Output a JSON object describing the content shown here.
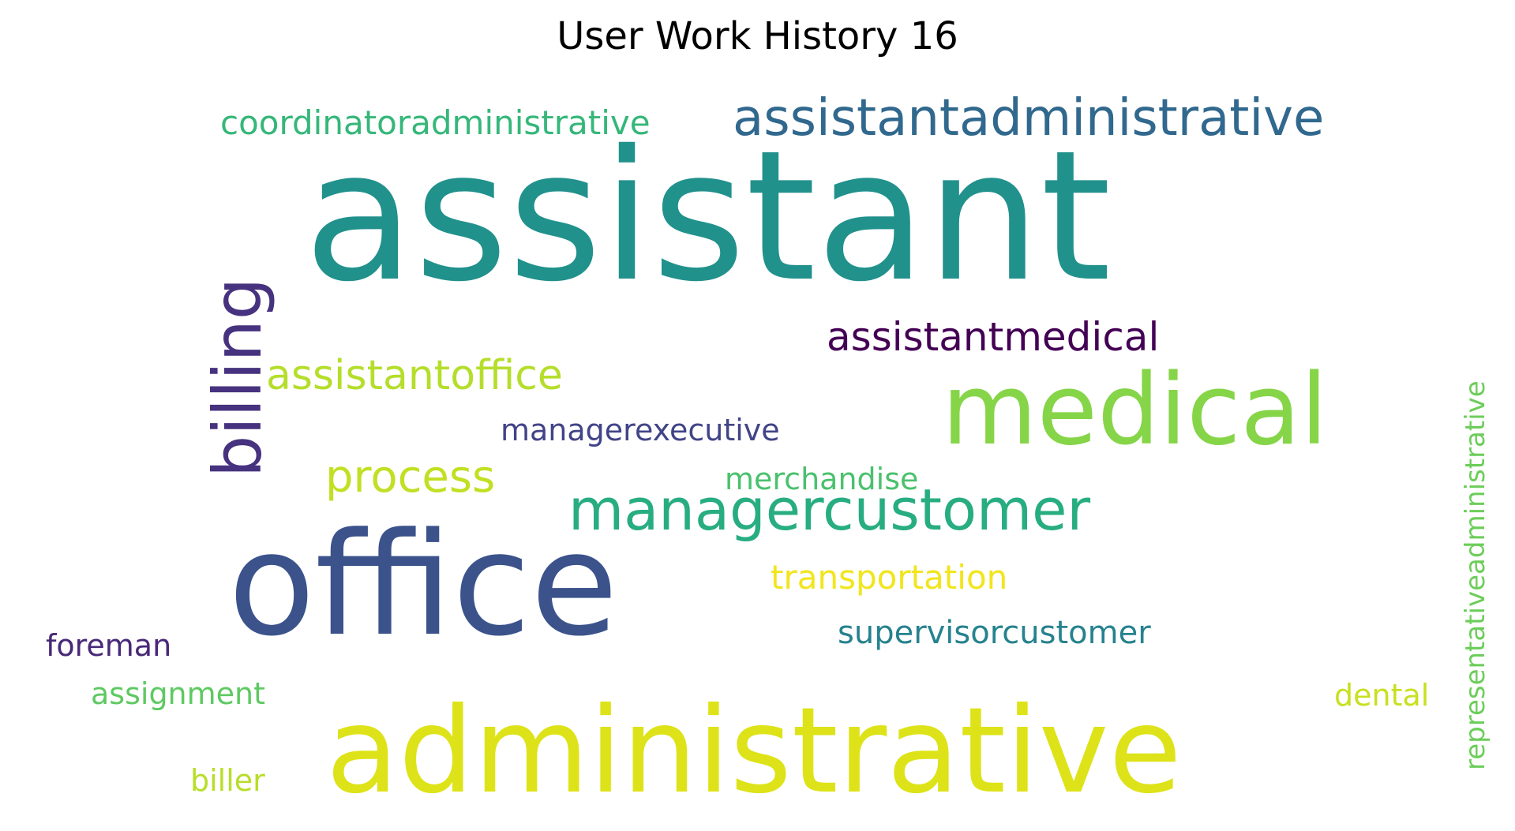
{
  "title": "User Work History 16",
  "words": [
    {
      "text": "assistant",
      "color": "#21918c",
      "vertical": false
    },
    {
      "text": "administrative",
      "color": "#dde318",
      "vertical": false
    },
    {
      "text": "office",
      "color": "#3b528b",
      "vertical": false
    },
    {
      "text": "medical",
      "color": "#86d549",
      "vertical": false
    },
    {
      "text": "billing",
      "color": "#46327e",
      "vertical": true
    },
    {
      "text": "assistantadministrative",
      "color": "#31688e",
      "vertical": false
    },
    {
      "text": "managercustomer",
      "color": "#27ad81",
      "vertical": false
    },
    {
      "text": "coordinatoradministrative",
      "color": "#35b779",
      "vertical": false
    },
    {
      "text": "assistantmedical",
      "color": "#440154",
      "vertical": false
    },
    {
      "text": "assistantoffice",
      "color": "#b5de2b",
      "vertical": false
    },
    {
      "text": "process",
      "color": "#c2df23",
      "vertical": false
    },
    {
      "text": "managerexecutive",
      "color": "#414487",
      "vertical": false
    },
    {
      "text": "merchandise",
      "color": "#4ac16d",
      "vertical": false
    },
    {
      "text": "transportation",
      "color": "#f1e51d",
      "vertical": false
    },
    {
      "text": "supervisorcustomer",
      "color": "#26828e",
      "vertical": false
    },
    {
      "text": "representativeadministrative",
      "color": "#6ccd5a",
      "vertical": true
    },
    {
      "text": "dental",
      "color": "#c8e020",
      "vertical": false
    },
    {
      "text": "foreman",
      "color": "#482878",
      "vertical": false
    },
    {
      "text": "assignment",
      "color": "#5ec962",
      "vertical": false
    },
    {
      "text": "biller",
      "color": "#b8de29",
      "vertical": false
    }
  ]
}
